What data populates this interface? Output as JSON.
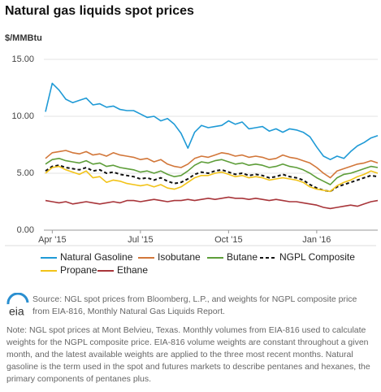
{
  "chart_data": {
    "type": "line",
    "title": "Natural gas liquids spot prices",
    "y_label": "$/MMBtu",
    "categories": [
      null,
      "Apr '15",
      null,
      null,
      null,
      null,
      null,
      null,
      null,
      null,
      null,
      null,
      null,
      null,
      "Jul '15",
      null,
      null,
      null,
      null,
      null,
      null,
      null,
      null,
      null,
      null,
      null,
      null,
      "Oct '15",
      null,
      null,
      null,
      null,
      null,
      null,
      null,
      null,
      null,
      null,
      null,
      null,
      "Jan '16",
      null,
      null,
      null,
      null,
      null,
      null,
      null,
      null,
      null
    ],
    "ylim": [
      0,
      15
    ],
    "yticks": [
      {
        "value": 0,
        "label": "0.00"
      },
      {
        "value": 5,
        "label": "5.00"
      },
      {
        "value": 10,
        "label": "10.00"
      },
      {
        "value": 15,
        "label": "15.00"
      }
    ],
    "grid": true,
    "series": [
      {
        "name": "Natural Gasoline",
        "color": "#1f9ad6",
        "values": [
          10.4,
          12.9,
          12.3,
          11.5,
          11.2,
          11.4,
          11.6,
          11.0,
          11.1,
          10.8,
          10.9,
          10.6,
          10.5,
          10.5,
          10.2,
          9.9,
          10.0,
          9.6,
          9.8,
          9.3,
          8.5,
          7.2,
          8.6,
          9.2,
          9.0,
          9.1,
          9.2,
          9.6,
          9.3,
          9.5,
          8.9,
          9.0,
          9.1,
          8.7,
          8.9,
          8.6,
          8.9,
          8.8,
          8.6,
          8.2,
          7.3,
          6.5,
          6.2,
          6.5,
          6.3,
          6.9,
          7.4,
          7.7,
          8.1,
          8.3
        ]
      },
      {
        "name": "Isobutane",
        "color": "#d2773a",
        "values": [
          6.3,
          6.8,
          6.9,
          7.0,
          6.8,
          6.7,
          6.9,
          6.6,
          6.7,
          6.5,
          6.8,
          6.6,
          6.5,
          6.4,
          6.2,
          6.3,
          6.0,
          6.2,
          5.8,
          5.6,
          5.5,
          5.8,
          6.3,
          6.5,
          6.4,
          6.6,
          6.8,
          6.7,
          6.5,
          6.6,
          6.4,
          6.5,
          6.4,
          6.2,
          6.3,
          6.6,
          6.4,
          6.3,
          6.1,
          5.9,
          5.5,
          5.0,
          4.6,
          5.2,
          5.4,
          5.6,
          5.8,
          5.9,
          6.1,
          5.9
        ]
      },
      {
        "name": "Butane",
        "color": "#5e9e3a",
        "values": [
          5.8,
          6.2,
          6.3,
          6.1,
          6.0,
          5.9,
          6.1,
          5.8,
          5.9,
          5.6,
          5.7,
          5.5,
          5.4,
          5.3,
          5.1,
          5.2,
          5.0,
          5.2,
          4.9,
          4.7,
          4.8,
          5.2,
          5.7,
          6.0,
          5.9,
          6.1,
          6.2,
          6.0,
          5.8,
          5.9,
          5.7,
          5.8,
          5.7,
          5.5,
          5.6,
          5.8,
          5.6,
          5.5,
          5.3,
          5.0,
          4.6,
          4.3,
          4.0,
          4.6,
          4.9,
          5.0,
          5.2,
          5.4,
          5.6,
          5.5
        ]
      },
      {
        "name": "NGPL Composite",
        "color": "#111111",
        "dashed": true,
        "values": [
          5.2,
          5.6,
          5.7,
          5.5,
          5.4,
          5.3,
          5.5,
          5.2,
          5.3,
          5.0,
          5.1,
          4.9,
          4.8,
          4.7,
          4.5,
          4.6,
          4.4,
          4.6,
          4.3,
          4.1,
          4.2,
          4.5,
          4.9,
          5.1,
          5.0,
          5.2,
          5.3,
          5.1,
          4.9,
          5.0,
          4.8,
          4.9,
          4.8,
          4.6,
          4.7,
          4.9,
          4.7,
          4.6,
          4.4,
          4.0,
          3.7,
          3.5,
          3.4,
          3.8,
          4.0,
          4.2,
          4.4,
          4.6,
          4.8,
          4.7
        ]
      },
      {
        "name": "Propane",
        "color": "#f2c318",
        "values": [
          5.0,
          5.5,
          5.6,
          5.3,
          5.1,
          4.9,
          5.2,
          4.6,
          4.7,
          4.2,
          4.4,
          4.3,
          4.1,
          4.0,
          3.9,
          4.0,
          3.8,
          4.0,
          3.7,
          3.6,
          3.8,
          4.2,
          4.6,
          4.8,
          4.8,
          5.0,
          5.1,
          4.9,
          4.7,
          4.8,
          4.6,
          4.7,
          4.6,
          4.4,
          4.5,
          4.6,
          4.5,
          4.4,
          4.2,
          3.8,
          3.6,
          3.5,
          3.4,
          3.9,
          4.2,
          4.4,
          4.7,
          4.9,
          5.2,
          5.0
        ]
      },
      {
        "name": "Ethane",
        "color": "#a8353a",
        "values": [
          2.6,
          2.5,
          2.4,
          2.5,
          2.3,
          2.4,
          2.5,
          2.4,
          2.3,
          2.4,
          2.5,
          2.4,
          2.6,
          2.6,
          2.5,
          2.6,
          2.7,
          2.6,
          2.5,
          2.6,
          2.6,
          2.7,
          2.6,
          2.7,
          2.8,
          2.7,
          2.8,
          2.9,
          2.8,
          2.8,
          2.7,
          2.8,
          2.7,
          2.6,
          2.7,
          2.6,
          2.5,
          2.5,
          2.4,
          2.3,
          2.2,
          2.0,
          1.9,
          2.0,
          2.1,
          2.2,
          2.1,
          2.3,
          2.5,
          2.6
        ]
      }
    ],
    "logo": "eia",
    "source": "Source: NGL spot prices from Bloomberg, L.P., and weights for NGPL composite price from EIA-816, Monthly Natural Gas Liquids Report.",
    "note": "Note: NGL spot prices at Mont Belvieu, Texas. Monthly volumes from EIA-816 used to calculate weights for the NGPL composite price. EIA-816 volume weights are constant throughout a given month, and the latest available weights are applied to the three most recent months. Natural gasoline is the term used in the spot and futures markets to describe pentanes and hexanes, the primary components of pentanes plus."
  }
}
